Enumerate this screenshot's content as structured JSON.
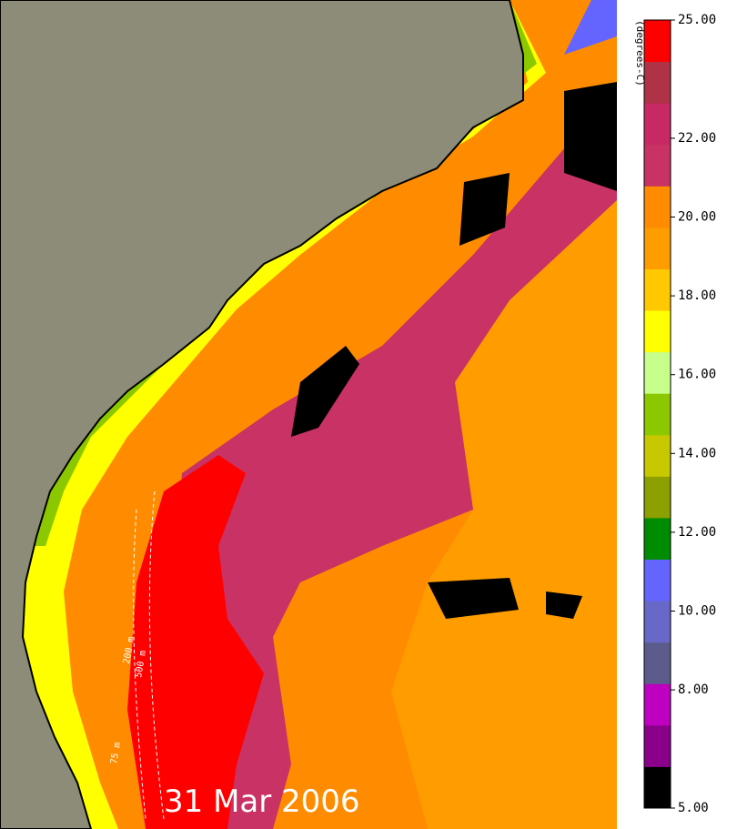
{
  "date_label": "31 Mar 2006",
  "isobath_labels": [
    "75 m",
    "200 m",
    "500 m"
  ],
  "colorbar": {
    "label": "(degrees-C)",
    "range": [
      5,
      25
    ],
    "colors": [
      "#000000",
      "#8a008a",
      "#c000c0",
      "#5c5c8c",
      "#6868c8",
      "#6464ff",
      "#008c00",
      "#8ca000",
      "#c8c800",
      "#8cc800",
      "#c8ff8c",
      "#ffff00",
      "#ffc800",
      "#ff9c00",
      "#ff8c00",
      "#c83264",
      "#c82864",
      "#b03246",
      "#ff0000"
    ],
    "ticks": [
      {
        "value": 5,
        "label": "5.00"
      },
      {
        "value": 8,
        "label": "8.00"
      },
      {
        "value": 10,
        "label": "10.00"
      },
      {
        "value": 12,
        "label": "12.00"
      },
      {
        "value": 14,
        "label": "14.00"
      },
      {
        "value": 16,
        "label": "16.00"
      },
      {
        "value": 18,
        "label": "18.00"
      },
      {
        "value": 20,
        "label": "20.00"
      },
      {
        "value": 22,
        "label": "22.00"
      },
      {
        "value": 25,
        "label": "25.00"
      }
    ]
  }
}
